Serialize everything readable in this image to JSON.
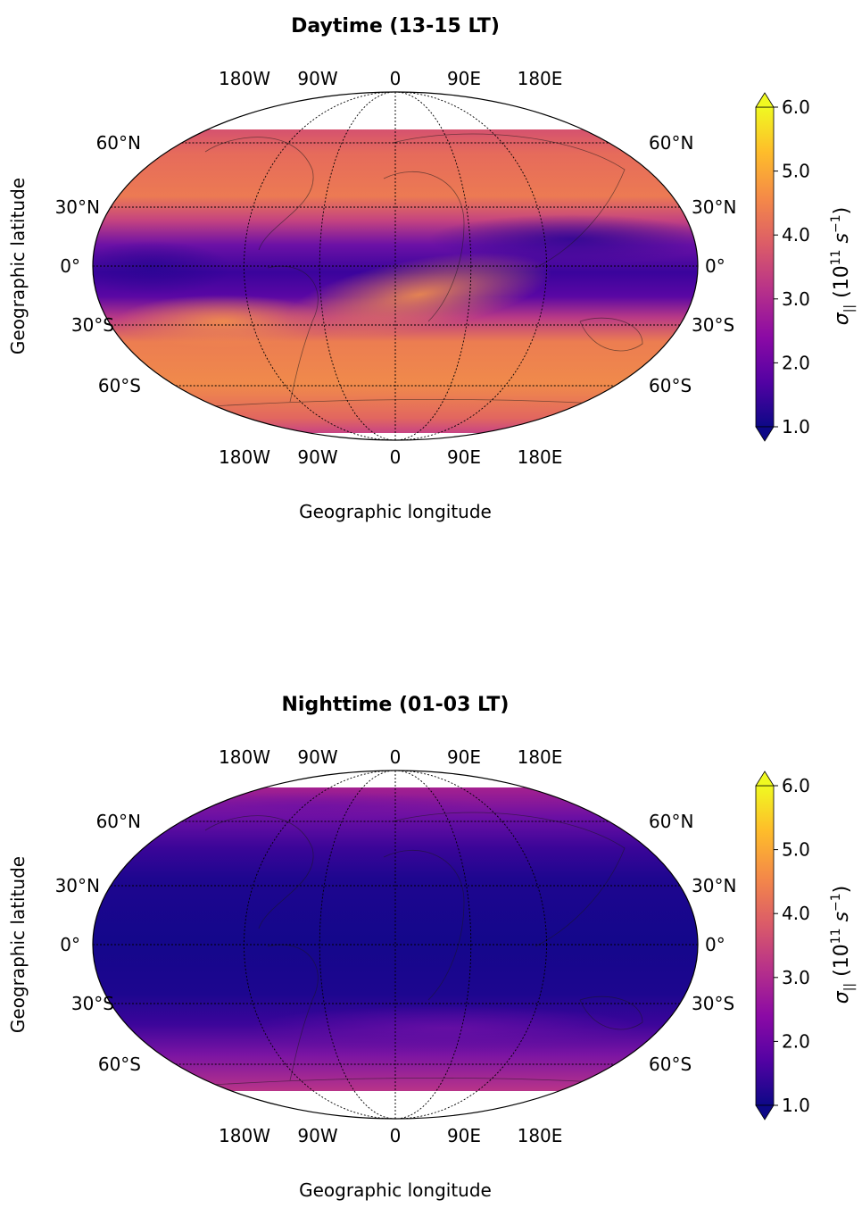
{
  "panels": [
    {
      "title": "Daytime (13-15 LT)",
      "regime": "day",
      "lon_ticks_top": [
        "180W",
        "90W",
        "0",
        "90E",
        "180E"
      ],
      "lon_ticks_bottom": [
        "180W",
        "90W",
        "0",
        "90E",
        "180E"
      ],
      "lat_ticks": [
        "60°N",
        "30°N",
        "0°",
        "30°S",
        "60°S"
      ],
      "ylabel": "Geographic latitude",
      "xlabel": "Geographic longitude",
      "colorbar": {
        "ticks": [
          "1.0",
          "2.0",
          "3.0",
          "4.0",
          "5.0",
          "6.0"
        ],
        "label_symbol": "σ",
        "label_subscript": "||",
        "label_units": "(10",
        "label_exp": "11",
        "label_unit2": " s",
        "label_exp2": "−1",
        "label_close": ")"
      }
    },
    {
      "title": "Nighttime (01-03 LT)",
      "regime": "night",
      "lon_ticks_top": [
        "180W",
        "90W",
        "0",
        "90E",
        "180E"
      ],
      "lon_ticks_bottom": [
        "180W",
        "90W",
        "0",
        "90E",
        "180E"
      ],
      "lat_ticks": [
        "60°N",
        "30°N",
        "0°",
        "30°S",
        "60°S"
      ],
      "ylabel": "Geographic latitude",
      "xlabel": "Geographic longitude",
      "colorbar": {
        "ticks": [
          "1.0",
          "2.0",
          "3.0",
          "4.0",
          "5.0",
          "6.0"
        ],
        "label_symbol": "σ",
        "label_subscript": "||",
        "label_units": "(10",
        "label_exp": "11",
        "label_unit2": " s",
        "label_exp2": "−1",
        "label_close": ")"
      }
    }
  ],
  "colors": {
    "plasma": [
      "#0d0887",
      "#5302a3",
      "#8b0aa5",
      "#b83289",
      "#db5c68",
      "#f48849",
      "#febd2a",
      "#f0f921"
    ]
  }
}
